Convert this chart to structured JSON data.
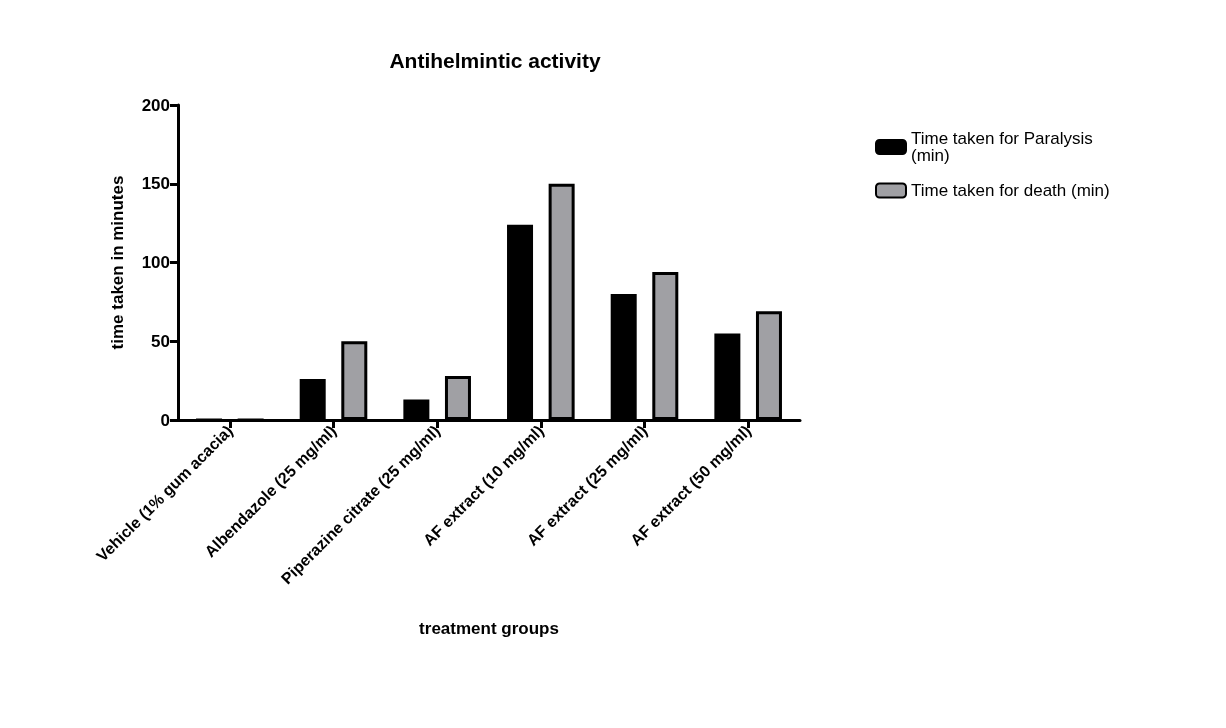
{
  "chart_data": {
    "type": "bar",
    "title": "Antihelmintic activity",
    "xlabel": "treatment groups",
    "ylabel": "time taken in minutes",
    "categories": [
      "Vehicle (1% gum acacia)",
      "Albendazole (25 mg/ml)",
      "Piperazine citrate (25 mg/ml)",
      "AF extract (10 mg/ml)",
      "AF extract (25 mg/ml)",
      "AF extract (50 mg/ml)"
    ],
    "series": [
      {
        "name": "Time taken for Paralysis (min)",
        "color": "#000000",
        "values": [
          0,
          26,
          13,
          124,
          80,
          55
        ]
      },
      {
        "name": "Time taken for death (min)",
        "color": "#a0a0a4",
        "values": [
          0,
          50,
          28,
          150,
          94,
          69
        ]
      }
    ],
    "ylim": [
      0,
      200
    ],
    "yticks": [
      0,
      50,
      100,
      150,
      200
    ],
    "grid": false,
    "legend": "right"
  }
}
